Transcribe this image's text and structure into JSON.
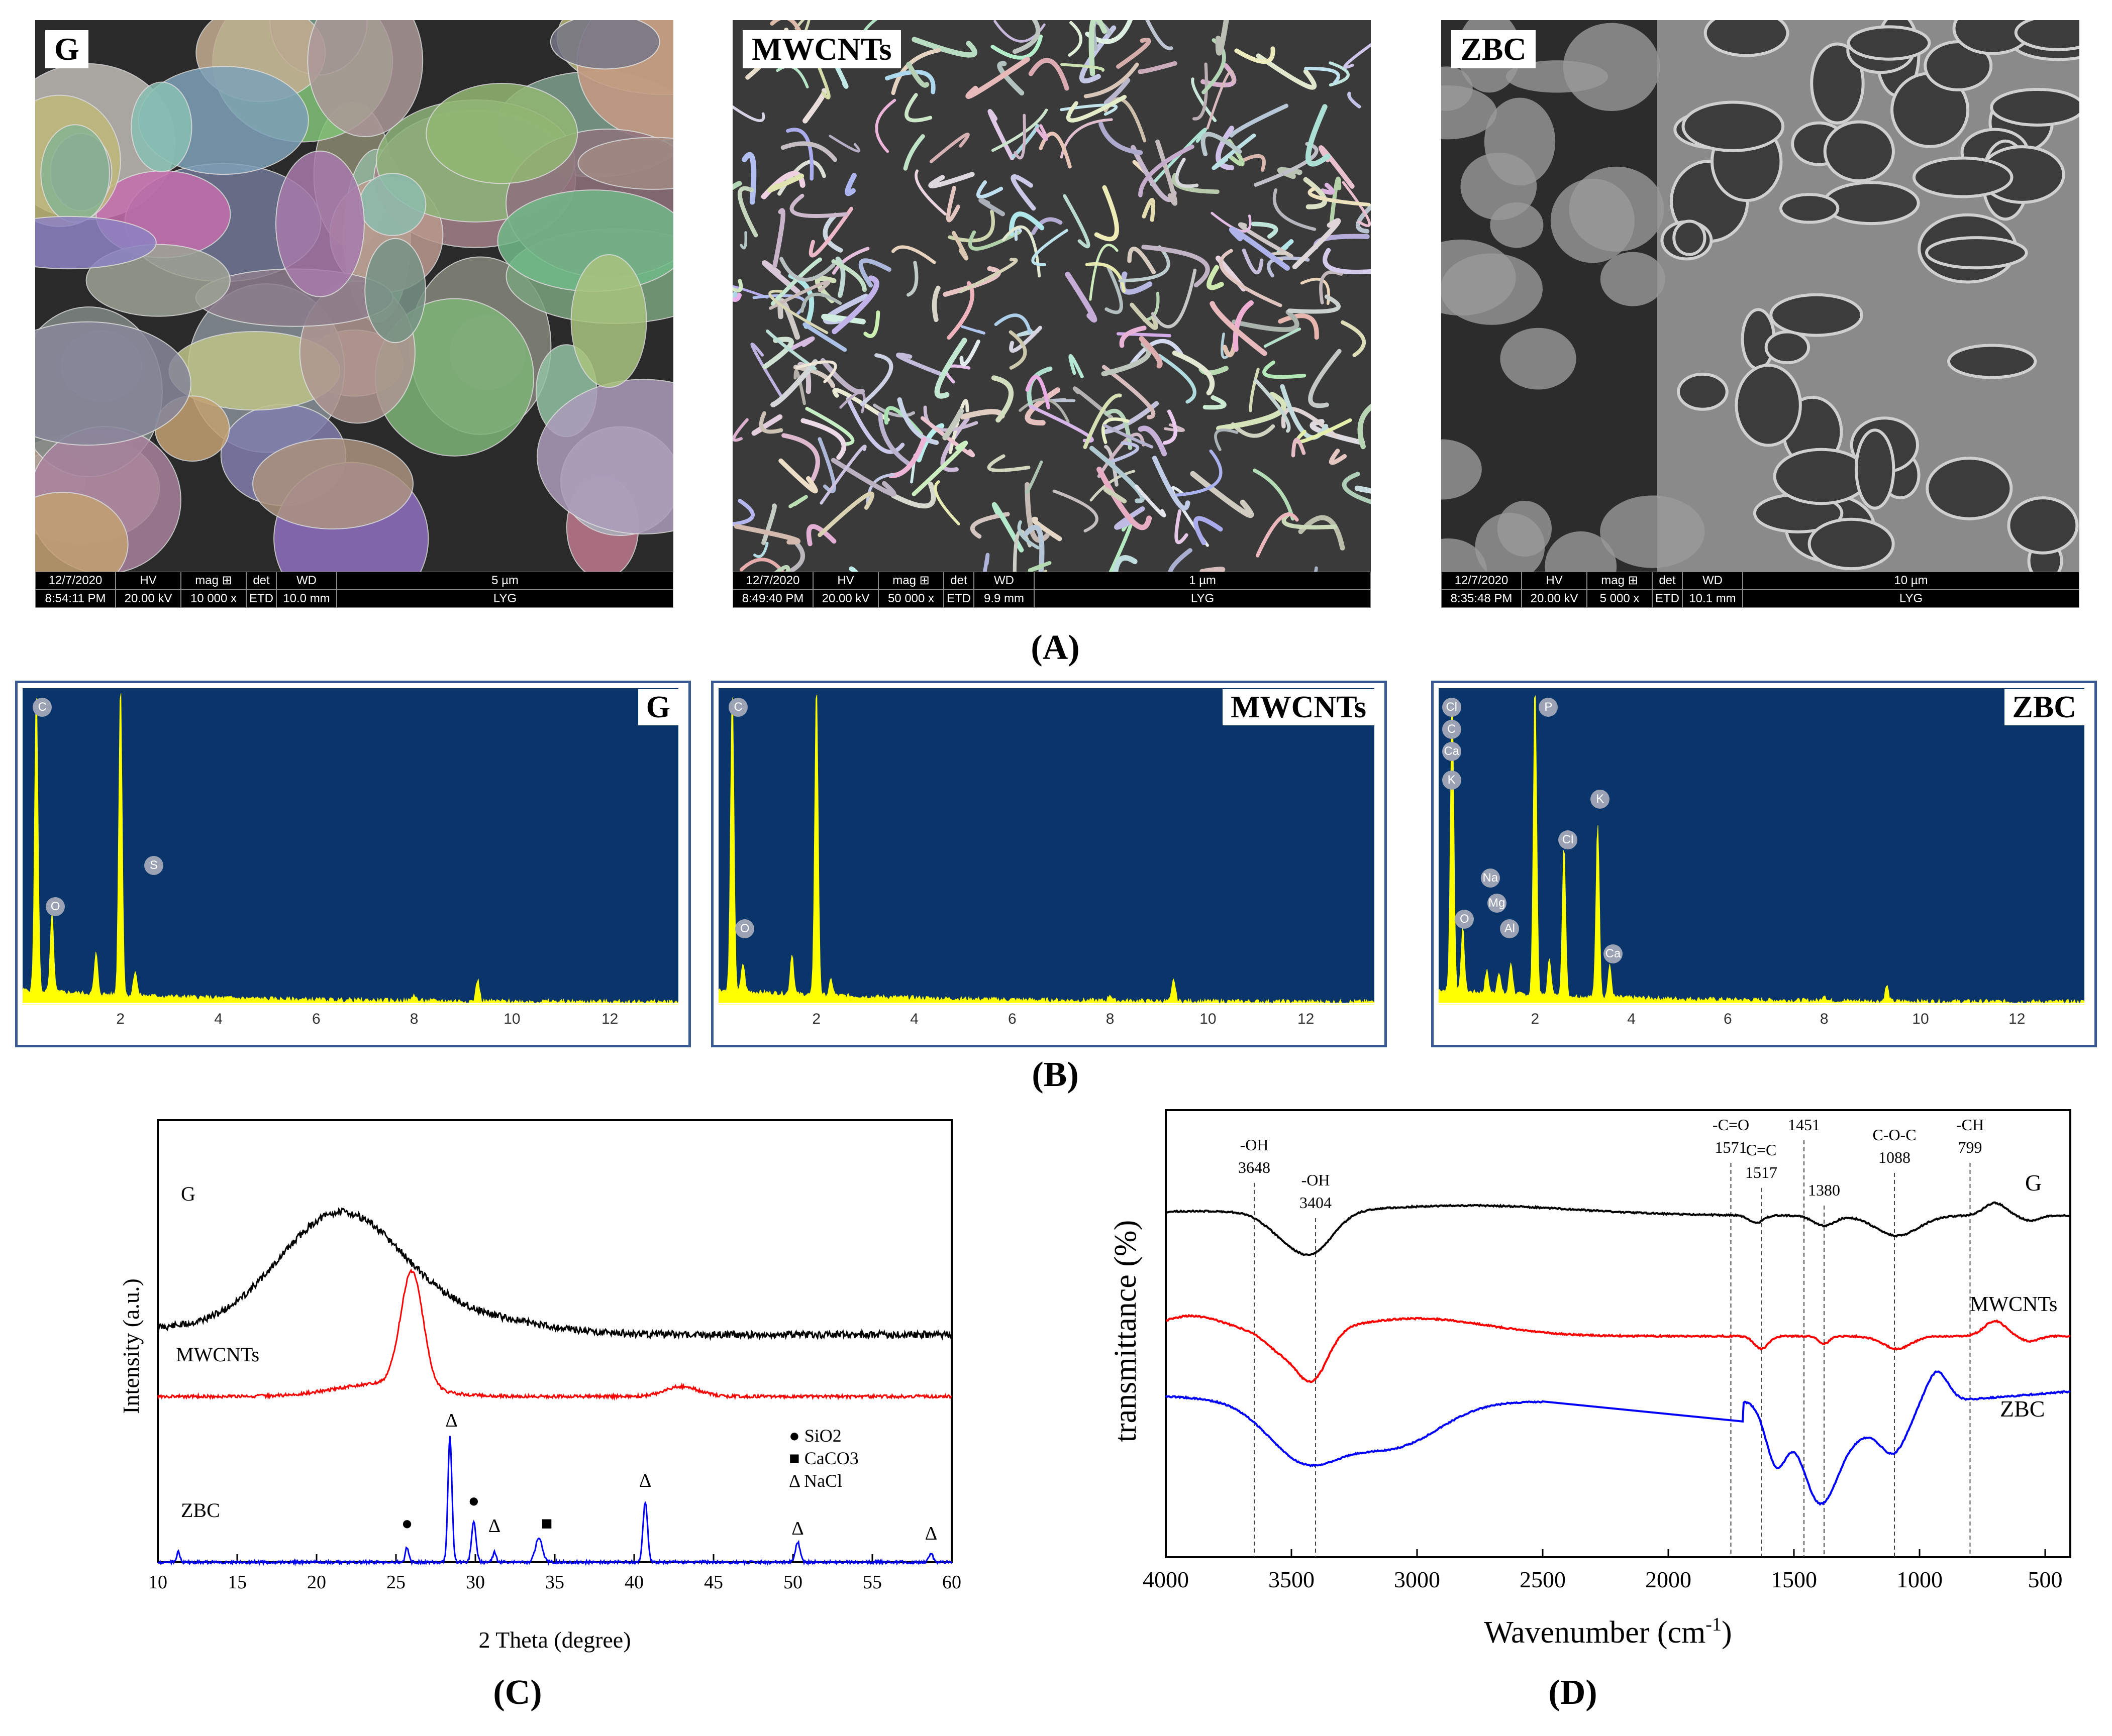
{
  "sem": [
    {
      "label": "G",
      "date": "12/7/2020",
      "time": "8:54:11 PM",
      "hv": "20.00 kV",
      "mag": "10 000 x",
      "det": "ETD",
      "wd": "10.0 mm",
      "scale": "5 µm",
      "op": "LYG"
    },
    {
      "label": "MWCNTs",
      "date": "12/7/2020",
      "time": "8:49:40 PM",
      "hv": "20.00 kV",
      "mag": "50 000 x",
      "det": "ETD",
      "wd": "9.9 mm",
      "scale": "1 µm",
      "op": "LYG"
    },
    {
      "label": "ZBC",
      "date": "12/7/2020",
      "time": "8:35:48 PM",
      "hv": "20.00 kV",
      "mag": "5 000 x",
      "det": "ETD",
      "wd": "10.1 mm",
      "scale": "10 µm",
      "op": "LYG"
    }
  ],
  "sem_headers": {
    "hv": "HV",
    "mag": "mag ⊞",
    "det": "det",
    "wd": "WD"
  },
  "panel_letters": {
    "A": "(A)",
    "B": "(B)",
    "C": "(C)",
    "D": "(D)"
  },
  "eds": [
    {
      "label": "G",
      "elements": [
        "C",
        "O",
        "S"
      ]
    },
    {
      "label": "MWCNTs",
      "elements": [
        "C",
        "O"
      ]
    },
    {
      "label": "ZBC",
      "elements": [
        "Cl",
        "C",
        "Ca",
        "K",
        "P",
        "Na",
        "Mg",
        "Al",
        "O",
        "Cl",
        "K",
        "Ca"
      ]
    }
  ],
  "eds_ticks": [
    "2",
    "4",
    "6",
    "8",
    "10",
    "12"
  ],
  "chart_data": [
    {
      "type": "line",
      "xlabel": "2 Theta (degree)",
      "ylabel": "Intensity (a.u.)",
      "xlim": [
        10,
        60
      ],
      "xticks": [
        "10",
        "15",
        "20",
        "25",
        "30",
        "35",
        "40",
        "45",
        "50",
        "55",
        "60"
      ],
      "series": [
        {
          "name": "G",
          "color": "#000000"
        },
        {
          "name": "MWCNTs",
          "color": "#ff0000"
        },
        {
          "name": "ZBC",
          "color": "#0000ff"
        }
      ],
      "legend": [
        "● SiO2",
        "■ CaCO3",
        "Δ NaCl"
      ],
      "peak_marks": [
        {
          "x": 25.7,
          "m": "●"
        },
        {
          "x": 28.5,
          "m": "Δ"
        },
        {
          "x": 29.9,
          "m": "●"
        },
        {
          "x": 31.2,
          "m": "Δ"
        },
        {
          "x": 34.5,
          "m": "■"
        },
        {
          "x": 40.7,
          "m": "Δ"
        },
        {
          "x": 50.3,
          "m": "Δ"
        },
        {
          "x": 58.7,
          "m": "Δ"
        }
      ]
    },
    {
      "type": "line",
      "xlabel": "Wavenumber (cm-1)",
      "ylabel": "transmittance (%)",
      "xlim": [
        4000,
        400
      ],
      "xticks": [
        "4000",
        "3500",
        "3000",
        "2500",
        "2000",
        "1500",
        "1000",
        "500"
      ],
      "series": [
        {
          "name": "G",
          "color": "#000000"
        },
        {
          "name": "MWCNTs",
          "color": "#ff0000"
        },
        {
          "name": "ZBC",
          "color": "#0000ff"
        }
      ],
      "annotations": [
        {
          "x": 3648,
          "label": "-OH",
          "value": "3648"
        },
        {
          "x": 3404,
          "label": "-OH",
          "value": "3404"
        },
        {
          "x": 1751,
          "label": "-C=O",
          "value": "1571"
        },
        {
          "x": 1630,
          "label": "C=C",
          "value": "1517"
        },
        {
          "x": 1460,
          "label": "",
          "value": "1451"
        },
        {
          "x": 1380,
          "label": "",
          "value": "1380"
        },
        {
          "x": 1100,
          "label": "C-O-C",
          "value": "1088"
        },
        {
          "x": 799,
          "label": "-CH",
          "value": "799"
        }
      ]
    }
  ]
}
